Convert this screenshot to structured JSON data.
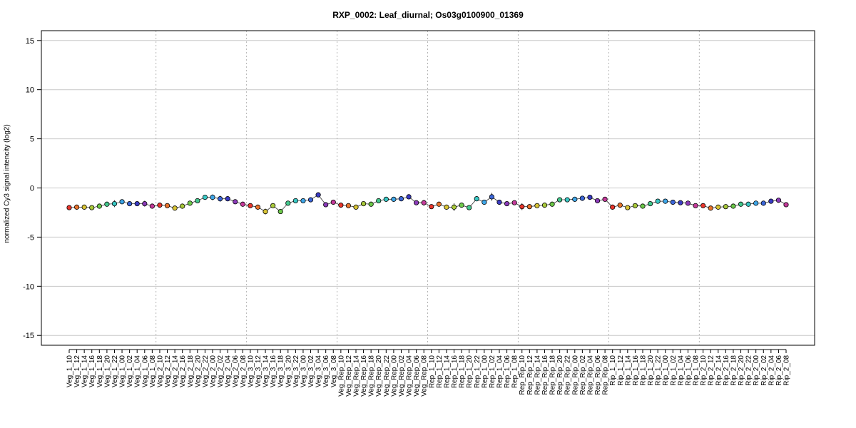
{
  "chart_data": {
    "type": "scatter",
    "title": "RXP_0002: Leaf_diurnal; Os03g0100900_01369",
    "xlabel": "",
    "ylabel": "normalized Cy3 signal intencity (log2)",
    "ylim": [
      -16,
      16
    ],
    "yticks": [
      -15,
      -10,
      -5,
      0,
      5,
      10,
      15
    ],
    "grid": true,
    "group_separators_after": [
      "Veg_1_08",
      "Veg_2_08",
      "Veg_3_08",
      "Veg_Rep_08",
      "Rep_1_08",
      "Rep_Rip_08",
      "Rip_1_08"
    ],
    "categories": [
      "Veg_1_10",
      "Veg_1_12",
      "Veg_1_14",
      "Veg_1_16",
      "Veg_1_18",
      "Veg_1_20",
      "Veg_1_22",
      "Veg_1_00",
      "Veg_1_02",
      "Veg_1_04",
      "Veg_1_06",
      "Veg_1_08",
      "Veg_2_10",
      "Veg_2_12",
      "Veg_2_14",
      "Veg_2_16",
      "Veg_2_18",
      "Veg_2_20",
      "Veg_2_22",
      "Veg_2_00",
      "Veg_2_02",
      "Veg_2_04",
      "Veg_2_06",
      "Veg_2_08",
      "Veg_3_10",
      "Veg_3_12",
      "Veg_3_14",
      "Veg_3_16",
      "Veg_3_18",
      "Veg_3_20",
      "Veg_3_22",
      "Veg_3_00",
      "Veg_3_02",
      "Veg_3_04",
      "Veg_3_06",
      "Veg_3_08",
      "Veg_Rep_10",
      "Veg_Rep_12",
      "Veg_Rep_14",
      "Veg_Rep_16",
      "Veg_Rep_18",
      "Veg_Rep_20",
      "Veg_Rep_22",
      "Veg_Rep_00",
      "Veg_Rep_02",
      "Veg_Rep_04",
      "Veg_Rep_06",
      "Veg_Rep_08",
      "Rep_1_10",
      "Rep_1_12",
      "Rep_1_14",
      "Rep_1_16",
      "Rep_1_18",
      "Rep_1_20",
      "Rep_1_22",
      "Rep_1_00",
      "Rep_1_02",
      "Rep_1_04",
      "Rep_1_06",
      "Rep_1_08",
      "Rep_Rip_10",
      "Rep_Rip_12",
      "Rep_Rip_14",
      "Rep_Rip_16",
      "Rep_Rip_18",
      "Rep_Rip_20",
      "Rep_Rip_22",
      "Rep_Rip_00",
      "Rep_Rip_02",
      "Rep_Rip_04",
      "Rep_Rip_06",
      "Rep_Rip_08",
      "Rip_1_10",
      "Rip_1_12",
      "Rip_1_14",
      "Rip_1_16",
      "Rip_1_18",
      "Rip_1_20",
      "Rip_1_22",
      "Rip_1_00",
      "Rip_1_02",
      "Rip_1_04",
      "Rip_1_06",
      "Rip_1_08",
      "Rip_2_10",
      "Rip_2_12",
      "Rip_2_14",
      "Rip_2_16",
      "Rip_2_18",
      "Rip_2_20",
      "Rip_2_22",
      "Rip_2_00",
      "Rip_2_02",
      "Rip_2_04",
      "Rip_2_06",
      "Rip_2_08"
    ],
    "values": [
      -2.0,
      -1.95,
      -1.95,
      -2.0,
      -1.85,
      -1.65,
      -1.6,
      -1.4,
      -1.6,
      -1.6,
      -1.6,
      -1.85,
      -1.75,
      -1.8,
      -2.05,
      -1.85,
      -1.55,
      -1.3,
      -0.95,
      -0.95,
      -1.1,
      -1.1,
      -1.4,
      -1.65,
      -1.8,
      -1.95,
      -2.4,
      -1.8,
      -2.4,
      -1.55,
      -1.3,
      -1.3,
      -1.2,
      -0.7,
      -1.7,
      -1.45,
      -1.75,
      -1.8,
      -1.95,
      -1.6,
      -1.65,
      -1.3,
      -1.15,
      -1.15,
      -1.1,
      -0.9,
      -1.5,
      -1.5,
      -1.9,
      -1.65,
      -1.95,
      -1.95,
      -1.75,
      -2.0,
      -1.1,
      -1.45,
      -0.9,
      -1.45,
      -1.6,
      -1.5,
      -1.9,
      -1.9,
      -1.8,
      -1.75,
      -1.65,
      -1.2,
      -1.2,
      -1.15,
      -1.05,
      -0.95,
      -1.3,
      -1.15,
      -1.95,
      -1.75,
      -2.0,
      -1.8,
      -1.85,
      -1.6,
      -1.35,
      -1.35,
      -1.45,
      -1.5,
      -1.55,
      -1.8,
      -1.8,
      -2.05,
      -1.95,
      -1.9,
      -1.85,
      -1.65,
      -1.65,
      -1.55,
      -1.55,
      -1.35,
      -1.25,
      -1.7
    ],
    "errors": [
      0.15,
      0.1,
      0.1,
      0.1,
      0.1,
      0.2,
      0.35,
      0.15,
      0.1,
      0.1,
      0.3,
      0.1,
      0.1,
      0.1,
      0.1,
      0.1,
      0.1,
      0.1,
      0.1,
      0.3,
      0.3,
      0.2,
      0.1,
      0.1,
      0.1,
      0.1,
      0.3,
      0.1,
      0.1,
      0.1,
      0.1,
      0.1,
      0.1,
      0.1,
      0.1,
      0.1,
      0.1,
      0.1,
      0.1,
      0.1,
      0.1,
      0.1,
      0.1,
      0.1,
      0.15,
      0.1,
      0.1,
      0.3,
      0.1,
      0.1,
      0.1,
      0.4,
      0.1,
      0.1,
      0.1,
      0.1,
      0.4,
      0.2,
      0.1,
      0.1,
      0.35,
      0.1,
      0.2,
      0.1,
      0.1,
      0.1,
      0.1,
      0.1,
      0.1,
      0.1,
      0.1,
      0.1,
      0.1,
      0.1,
      0.1,
      0.1,
      0.1,
      0.1,
      0.1,
      0.1,
      0.1,
      0.1,
      0.1,
      0.2,
      0.1,
      0.1,
      0.1,
      0.1,
      0.1,
      0.1,
      0.1,
      0.1,
      0.1,
      0.1,
      0.1,
      0.1
    ],
    "point_colors_by_hour": {
      "10": "#e8352c",
      "12": "#e8732c",
      "14": "#d8c435",
      "16": "#a8c83a",
      "18": "#6dc94a",
      "20": "#43c78c",
      "22": "#39c8c4",
      "00": "#3ea6e8",
      "02": "#3b66d8",
      "04": "#3a3bc4",
      "06": "#8a3ab8",
      "08": "#c43a9a"
    }
  }
}
